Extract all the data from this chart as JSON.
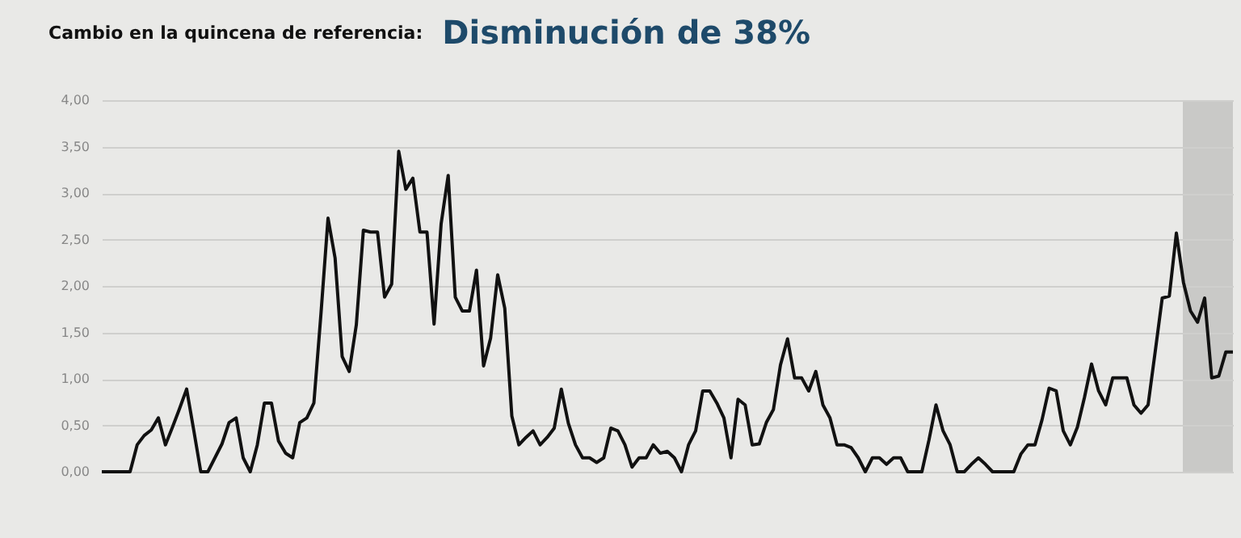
{
  "chart_data": {
    "type": "line",
    "title": "Cambio en la quincena de referencia:",
    "subtitle": "Disminución de 38%",
    "categories": [
      null,
      null,
      null,
      null,
      null,
      null,
      null,
      null,
      null,
      null,
      null,
      null,
      null,
      null,
      null,
      null,
      null,
      null,
      null,
      null,
      null,
      null,
      null,
      null,
      null,
      null,
      null,
      null,
      null,
      null,
      null,
      null,
      null,
      null,
      null,
      null,
      null,
      null,
      null,
      null,
      null,
      null,
      null,
      null,
      null,
      null,
      null,
      null,
      null,
      null,
      null,
      null,
      null,
      null,
      null,
      null,
      null,
      null,
      null,
      null,
      null,
      null,
      null,
      null,
      null,
      null,
      null,
      null,
      null,
      null,
      null,
      null,
      null,
      null,
      null,
      null,
      null,
      null,
      null,
      null,
      null,
      null,
      null,
      null,
      null,
      null,
      null,
      null,
      null,
      null,
      null,
      null,
      null,
      null,
      null,
      null,
      null,
      null,
      null,
      null,
      null,
      null,
      null,
      null,
      null,
      null,
      null,
      null,
      null,
      null,
      null,
      null,
      null,
      null,
      null,
      null,
      null,
      null,
      null,
      null,
      null,
      null,
      null,
      null,
      null,
      null,
      null,
      null,
      null,
      null,
      null,
      null,
      null,
      null,
      null,
      null,
      null,
      null,
      null,
      null,
      null,
      null,
      null,
      null,
      null,
      null,
      null,
      null,
      null,
      null,
      null,
      null,
      null,
      null,
      null,
      null,
      null,
      null,
      null,
      null,
      null
    ],
    "series": [
      {
        "color": "#111111",
        "values": [
          0,
          0,
          0,
          0,
          0,
          0.29,
          0.39,
          0.45,
          0.58,
          0.29,
          0.48,
          0.68,
          0.89,
          0.45,
          0,
          0,
          0.15,
          0.3,
          0.53,
          0.58,
          0.15,
          0,
          0.29,
          0.74,
          0.74,
          0.33,
          0.2,
          0.15,
          0.53,
          0.58,
          0.74,
          1.7,
          2.73,
          2.3,
          1.24,
          1.08,
          1.58,
          2.6,
          2.58,
          2.58,
          1.88,
          2.02,
          3.45,
          3.04,
          3.16,
          2.58,
          2.58,
          1.59,
          2.67,
          3.19,
          1.88,
          1.73,
          1.73,
          2.17,
          1.14,
          1.44,
          2.12,
          1.76,
          0.6,
          0.29,
          0.37,
          0.44,
          0.29,
          0.37,
          0.47,
          0.89,
          0.52,
          0.29,
          0.15,
          0.15,
          0.1,
          0.15,
          0.47,
          0.44,
          0.29,
          0.05,
          0.15,
          0.15,
          0.29,
          0.2,
          0.22,
          0.15,
          0,
          0.29,
          0.44,
          0.87,
          0.87,
          0.74,
          0.58,
          0.15,
          0.78,
          0.72,
          0.29,
          0.3,
          0.53,
          0.67,
          1.15,
          1.43,
          1.01,
          1.01,
          0.87,
          1.08,
          0.72,
          0.58,
          0.29,
          0.29,
          0.26,
          0.15,
          0,
          0.15,
          0.15,
          0.08,
          0.15,
          0.15,
          0,
          0,
          0,
          0.34,
          0.72,
          0.44,
          0.29,
          0,
          0,
          0.08,
          0.15,
          0.08,
          0,
          0,
          0,
          0,
          0.19,
          0.29,
          0.29,
          0.56,
          0.9,
          0.87,
          0.44,
          0.29,
          0.48,
          0.8,
          1.16,
          0.87,
          0.72,
          1.01,
          1.01,
          1.01,
          0.72,
          0.63,
          0.72,
          1.29,
          1.87,
          1.89,
          2.57,
          2.04,
          1.73,
          1.61,
          1.87,
          1.01,
          1.03,
          1.29,
          1.29
        ]
      }
    ],
    "ylim": [
      0,
      4
    ],
    "yticks": [
      {
        "value": 0,
        "label": "0,00"
      },
      {
        "value": 0.5,
        "label": "0,50"
      },
      {
        "value": 1,
        "label": "1,00"
      },
      {
        "value": 1.5,
        "label": "1,50"
      },
      {
        "value": 2,
        "label": "2,00"
      },
      {
        "value": 2.5,
        "label": "2,50"
      },
      {
        "value": 3,
        "label": "3,00"
      },
      {
        "value": 3.5,
        "label": "3,50"
      },
      {
        "value": 4,
        "label": "4,00"
      }
    ],
    "grid": "y",
    "tick_labels": "y",
    "marker": "none",
    "line_style": "solid"
  }
}
